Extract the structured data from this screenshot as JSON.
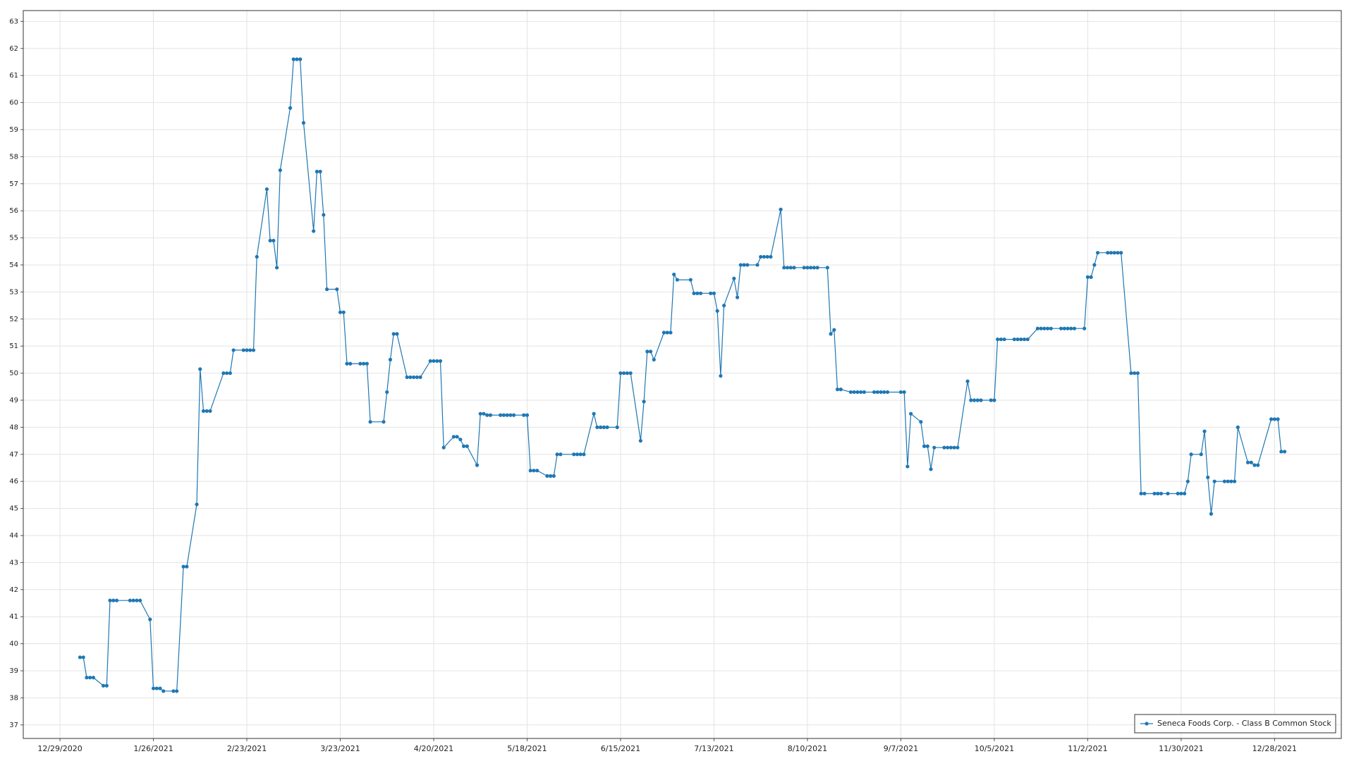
{
  "chart_data": {
    "type": "line",
    "x": [
      "1/4/2021",
      "1/5/2021",
      "1/6/2021",
      "1/7/2021",
      "1/8/2021",
      "1/11/2021",
      "1/12/2021",
      "1/13/2021",
      "1/14/2021",
      "1/15/2021",
      "1/19/2021",
      "1/20/2021",
      "1/21/2021",
      "1/22/2021",
      "1/25/2021",
      "1/26/2021",
      "1/27/2021",
      "1/28/2021",
      "1/29/2021",
      "2/1/2021",
      "2/2/2021",
      "2/4/2021",
      "2/5/2021",
      "2/8/2021",
      "2/9/2021",
      "2/10/2021",
      "2/11/2021",
      "2/12/2021",
      "2/16/2021",
      "2/17/2021",
      "2/18/2021",
      "2/19/2021",
      "2/22/2021",
      "2/23/2021",
      "2/24/2021",
      "2/25/2021",
      "2/26/2021",
      "3/1/2021",
      "3/2/2021",
      "3/3/2021",
      "3/4/2021",
      "3/5/2021",
      "3/8/2021",
      "3/9/2021",
      "3/10/2021",
      "3/11/2021",
      "3/12/2021",
      "3/15/2021",
      "3/16/2021",
      "3/17/2021",
      "3/18/2021",
      "3/19/2021",
      "3/22/2021",
      "3/23/2021",
      "3/24/2021",
      "3/25/2021",
      "3/26/2021",
      "3/29/2021",
      "3/30/2021",
      "3/31/2021",
      "4/1/2021",
      "4/5/2021",
      "4/6/2021",
      "4/7/2021",
      "4/8/2021",
      "4/9/2021",
      "4/12/2021",
      "4/13/2021",
      "4/14/2021",
      "4/15/2021",
      "4/16/2021",
      "4/19/2021",
      "4/20/2021",
      "4/21/2021",
      "4/22/2021",
      "4/23/2021",
      "4/26/2021",
      "4/27/2021",
      "4/28/2021",
      "4/29/2021",
      "4/30/2021",
      "5/3/2021",
      "5/4/2021",
      "5/5/2021",
      "5/6/2021",
      "5/7/2021",
      "5/10/2021",
      "5/11/2021",
      "5/12/2021",
      "5/13/2021",
      "5/14/2021",
      "5/17/2021",
      "5/18/2021",
      "5/19/2021",
      "5/20/2021",
      "5/21/2021",
      "5/24/2021",
      "5/25/2021",
      "5/26/2021",
      "5/27/2021",
      "5/28/2021",
      "6/1/2021",
      "6/2/2021",
      "6/3/2021",
      "6/4/2021",
      "6/7/2021",
      "6/8/2021",
      "6/9/2021",
      "6/10/2021",
      "6/11/2021",
      "6/14/2021",
      "6/15/2021",
      "6/16/2021",
      "6/17/2021",
      "6/18/2021",
      "6/21/2021",
      "6/22/2021",
      "6/23/2021",
      "6/24/2021",
      "6/25/2021",
      "6/28/2021",
      "6/29/2021",
      "6/30/2021",
      "7/1/2021",
      "7/2/2021",
      "7/6/2021",
      "7/7/2021",
      "7/8/2021",
      "7/9/2021",
      "7/12/2021",
      "7/13/2021",
      "7/14/2021",
      "7/15/2021",
      "7/16/2021",
      "7/19/2021",
      "7/20/2021",
      "7/21/2021",
      "7/22/2021",
      "7/23/2021",
      "7/26/2021",
      "7/27/2021",
      "7/28/2021",
      "7/29/2021",
      "7/30/2021",
      "8/2/2021",
      "8/3/2021",
      "8/4/2021",
      "8/5/2021",
      "8/6/2021",
      "8/9/2021",
      "8/10/2021",
      "8/11/2021",
      "8/12/2021",
      "8/13/2021",
      "8/16/2021",
      "8/17/2021",
      "8/18/2021",
      "8/19/2021",
      "8/20/2021",
      "8/23/2021",
      "8/24/2021",
      "8/25/2021",
      "8/26/2021",
      "8/27/2021",
      "8/30/2021",
      "8/31/2021",
      "9/1/2021",
      "9/2/2021",
      "9/3/2021",
      "9/7/2021",
      "9/8/2021",
      "9/9/2021",
      "9/10/2021",
      "9/13/2021",
      "9/14/2021",
      "9/15/2021",
      "9/16/2021",
      "9/17/2021",
      "9/20/2021",
      "9/21/2021",
      "9/22/2021",
      "9/23/2021",
      "9/24/2021",
      "9/27/2021",
      "9/28/2021",
      "9/29/2021",
      "9/30/2021",
      "10/1/2021",
      "10/4/2021",
      "10/5/2021",
      "10/6/2021",
      "10/7/2021",
      "10/8/2021",
      "10/11/2021",
      "10/12/2021",
      "10/13/2021",
      "10/14/2021",
      "10/15/2021",
      "10/18/2021",
      "10/19/2021",
      "10/20/2021",
      "10/21/2021",
      "10/22/2021",
      "10/25/2021",
      "10/26/2021",
      "10/27/2021",
      "10/28/2021",
      "10/29/2021",
      "11/1/2021",
      "11/2/2021",
      "11/3/2021",
      "11/4/2021",
      "11/5/2021",
      "11/8/2021",
      "11/9/2021",
      "11/10/2021",
      "11/11/2021",
      "11/12/2021",
      "11/15/2021",
      "11/16/2021",
      "11/17/2021",
      "11/18/2021",
      "11/19/2021",
      "11/22/2021",
      "11/23/2021",
      "11/24/2021",
      "11/26/2021",
      "11/29/2021",
      "11/30/2021",
      "12/1/2021",
      "12/2/2021",
      "12/3/2021",
      "12/6/2021",
      "12/7/2021",
      "12/8/2021",
      "12/9/2021",
      "12/10/2021",
      "12/13/2021",
      "12/14/2021",
      "12/15/2021",
      "12/16/2021",
      "12/17/2021",
      "12/20/2021",
      "12/21/2021",
      "12/22/2021",
      "12/23/2021",
      "12/27/2021",
      "12/28/2021",
      "12/29/2021",
      "12/30/2021",
      "12/31/2021"
    ],
    "series": [
      {
        "name": "Seneca Foods Corp. - Class B Common Stock",
        "color": "#1f77b4",
        "values": [
          39.5,
          39.5,
          38.75,
          38.75,
          38.75,
          38.45,
          38.45,
          41.6,
          41.6,
          41.6,
          41.6,
          41.6,
          41.6,
          41.6,
          40.9,
          38.35,
          38.35,
          38.35,
          38.25,
          38.25,
          38.25,
          42.85,
          42.85,
          45.15,
          50.15,
          48.6,
          48.6,
          48.6,
          50,
          50,
          50,
          50.85,
          50.85,
          50.85,
          50.85,
          50.85,
          54.3,
          56.8,
          54.9,
          54.9,
          53.9,
          57.5,
          59.8,
          61.6,
          61.6,
          61.6,
          59.25,
          55.25,
          57.45,
          57.45,
          55.85,
          53.1,
          53.1,
          52.25,
          52.25,
          50.35,
          50.35,
          50.35,
          50.35,
          50.35,
          48.2,
          48.2,
          49.3,
          50.5,
          51.45,
          51.45,
          49.85,
          49.85,
          49.85,
          49.85,
          49.85,
          50.45,
          50.45,
          50.45,
          50.45,
          47.25,
          47.65,
          47.65,
          47.55,
          47.3,
          47.3,
          46.6,
          48.5,
          48.5,
          48.45,
          48.45,
          48.45,
          48.45,
          48.45,
          48.45,
          48.45,
          48.45,
          48.45,
          46.4,
          46.4,
          46.4,
          46.2,
          46.2,
          46.2,
          47,
          47,
          47,
          47,
          47,
          47,
          48.5,
          48,
          48,
          48,
          48,
          48,
          50,
          50,
          50,
          50,
          47.5,
          48.95,
          50.8,
          50.8,
          50.5,
          51.5,
          51.5,
          51.5,
          53.65,
          53.45,
          53.45,
          52.95,
          52.95,
          52.95,
          52.95,
          52.95,
          52.3,
          49.9,
          52.5,
          53.5,
          52.8,
          54,
          54,
          54,
          54,
          54.3,
          54.3,
          54.3,
          54.3,
          56.05,
          53.9,
          53.9,
          53.9,
          53.9,
          53.9,
          53.9,
          53.9,
          53.9,
          53.9,
          53.9,
          51.45,
          51.6,
          49.4,
          49.4,
          49.3,
          49.3,
          49.3,
          49.3,
          49.3,
          49.3,
          49.3,
          49.3,
          49.3,
          49.3,
          49.3,
          49.3,
          46.55,
          48.5,
          48.2,
          47.3,
          47.3,
          46.45,
          47.25,
          47.25,
          47.25,
          47.25,
          47.25,
          47.25,
          49.7,
          49,
          49,
          49,
          49,
          49,
          49,
          51.25,
          51.25,
          51.25,
          51.25,
          51.25,
          51.25,
          51.25,
          51.25,
          51.65,
          51.65,
          51.65,
          51.65,
          51.65,
          51.65,
          51.65,
          51.65,
          51.65,
          51.65,
          51.65,
          53.55,
          53.55,
          54,
          54.45,
          54.45,
          54.45,
          54.45,
          54.45,
          54.45,
          50,
          50,
          50,
          45.55,
          45.55,
          45.55,
          45.55,
          45.55,
          45.55,
          45.55,
          45.55,
          45.55,
          46,
          47,
          47,
          47.85,
          46.15,
          44.8,
          46,
          46,
          46,
          46,
          46,
          48,
          46.7,
          46.7,
          46.6,
          46.6,
          48.3,
          48.3,
          48.3,
          47.1,
          47.1
        ]
      }
    ],
    "xlim": [
      "12/18/2020",
      "1/17/2022"
    ],
    "xticks": [
      "12/29/2020",
      "1/26/2021",
      "2/23/2021",
      "3/23/2021",
      "4/20/2021",
      "5/18/2021",
      "6/15/2021",
      "7/13/2021",
      "8/10/2021",
      "9/7/2021",
      "10/5/2021",
      "11/2/2021",
      "11/30/2021",
      "12/28/2021"
    ],
    "ylim": [
      36.5,
      63.4
    ],
    "yticks": [
      37,
      38,
      39,
      40,
      41,
      42,
      43,
      44,
      45,
      46,
      47,
      48,
      49,
      50,
      51,
      52,
      53,
      54,
      55,
      56,
      57,
      58,
      59,
      60,
      61,
      62,
      63
    ],
    "grid": true,
    "legend": "lower right"
  }
}
